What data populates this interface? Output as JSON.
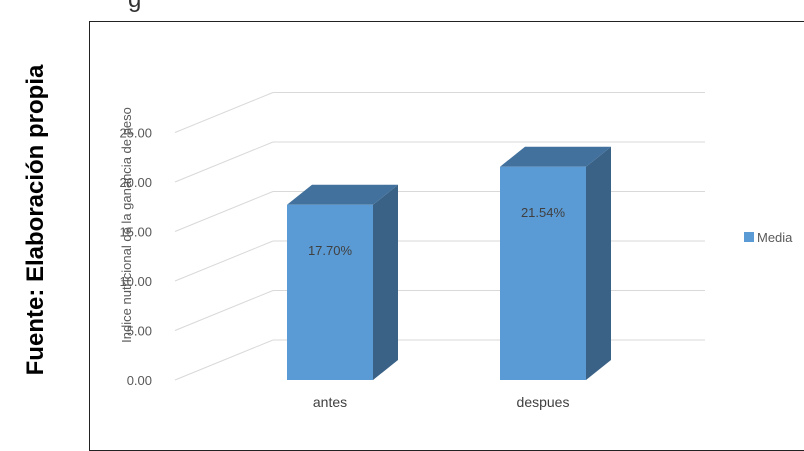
{
  "caption": "Fuente: Elaboración propia",
  "top_fragment": "g",
  "chart_data": {
    "type": "bar",
    "categories": [
      "antes",
      "despues"
    ],
    "series": [
      {
        "name": "Media",
        "values": [
          17.7,
          21.54
        ],
        "data_labels": [
          "17.70%",
          "21.54%"
        ]
      }
    ],
    "title": "",
    "xlabel": "",
    "ylabel": "Indice nutricional de la ganancia de peso",
    "ylim": [
      0,
      25
    ],
    "yticks": [
      "0.00",
      "5.00",
      "10.00",
      "15.00",
      "20.00",
      "25.00"
    ],
    "grid": true,
    "legend": "right",
    "colors": {
      "front": "#5b9bd5",
      "top": "#41719c",
      "side": "#3a6186",
      "grid": "#d9d9d9"
    }
  }
}
